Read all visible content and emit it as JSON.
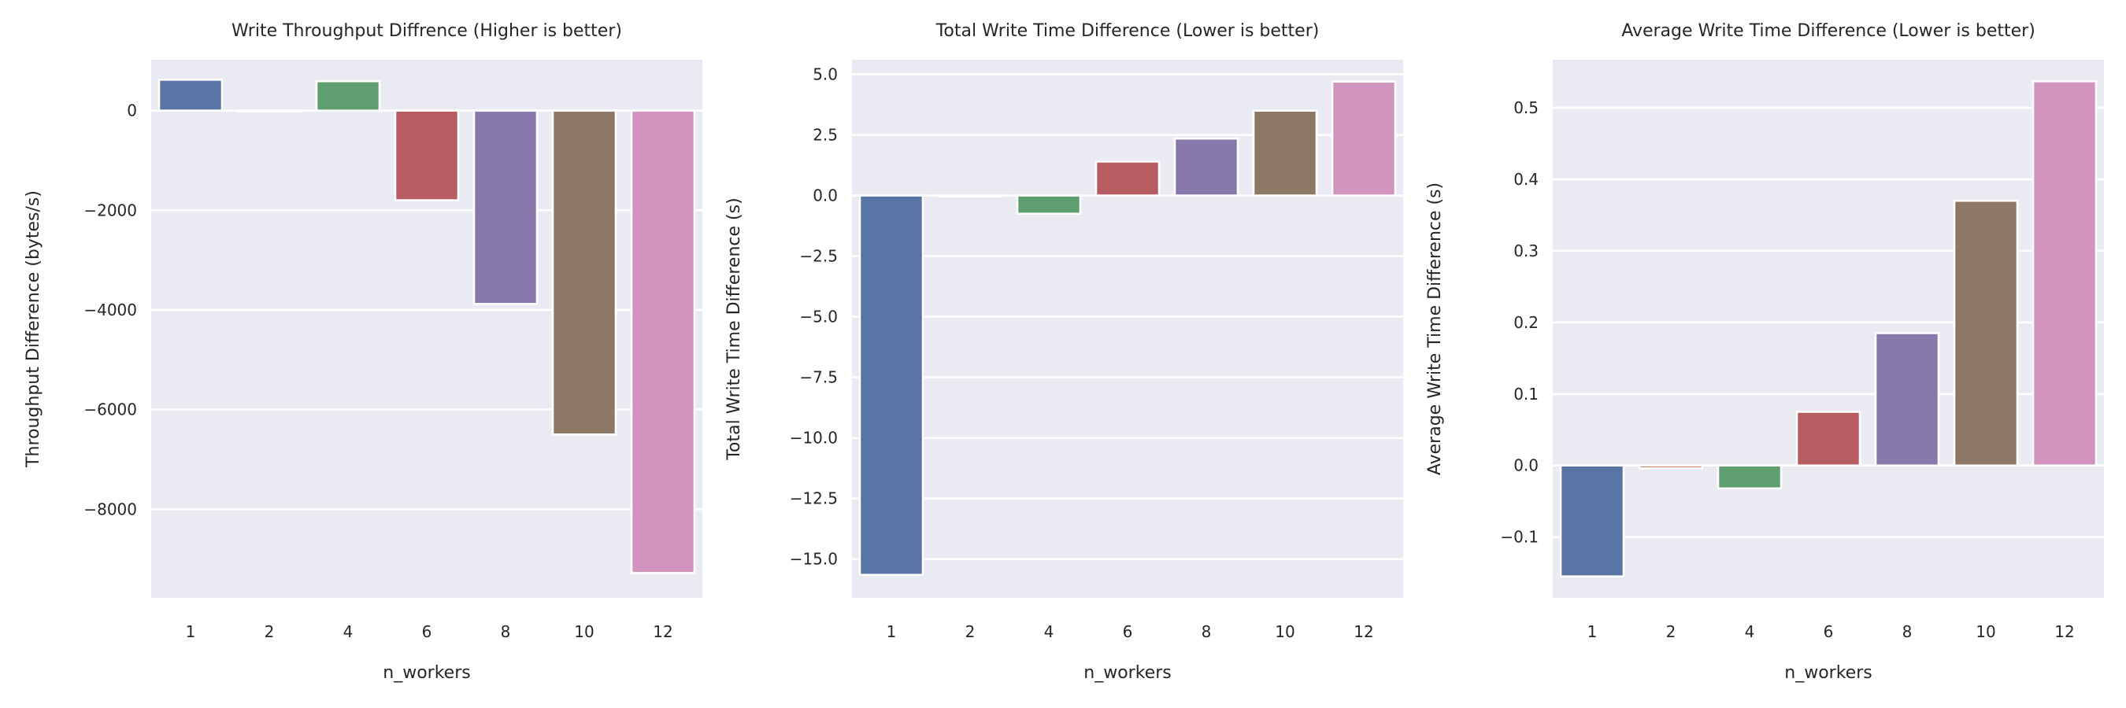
{
  "chart_data": [
    {
      "type": "bar",
      "title": "Write Throughput Diffrence (Higher is better)",
      "xlabel": "n_workers",
      "ylabel": "Throughput Difference (bytes/s)",
      "categories": [
        "1",
        "2",
        "4",
        "6",
        "8",
        "10",
        "12"
      ],
      "values": [
        620,
        0,
        590,
        -1800,
        -3880,
        -6500,
        -9280
      ],
      "ylim": [
        -9780,
        1020
      ],
      "yticks": [
        0,
        -2000,
        -4000,
        -6000,
        -8000
      ],
      "ytick_labels": [
        "0",
        "−2000",
        "−4000",
        "−6000",
        "−8000"
      ],
      "grid": true
    },
    {
      "type": "bar",
      "title": "Total Write Time Difference (Lower is better)",
      "xlabel": "n_workers",
      "ylabel": "Total Write Time Difference (s)",
      "categories": [
        "1",
        "2",
        "4",
        "6",
        "8",
        "10",
        "12"
      ],
      "values": [
        -15.65,
        0.0,
        -0.75,
        1.4,
        2.35,
        3.5,
        4.7
      ],
      "ylim": [
        -16.6,
        5.6
      ],
      "yticks": [
        5.0,
        2.5,
        0.0,
        -2.5,
        -5.0,
        -7.5,
        -10.0,
        -12.5,
        -15.0
      ],
      "ytick_labels": [
        "5.0",
        "2.5",
        "0.0",
        "−2.5",
        "−5.0",
        "−7.5",
        "−10.0",
        "−12.5",
        "−15.0"
      ],
      "grid": true
    },
    {
      "type": "bar",
      "title": "Average Write Time Difference (Lower is better)",
      "xlabel": "n_workers",
      "ylabel": "Average Write Time Difference (s)",
      "categories": [
        "1",
        "2",
        "4",
        "6",
        "8",
        "10",
        "12"
      ],
      "values": [
        -0.155,
        -0.004,
        -0.032,
        0.075,
        0.185,
        0.37,
        0.537
      ],
      "ylim": [
        -0.185,
        0.567
      ],
      "yticks": [
        0.5,
        0.4,
        0.3,
        0.2,
        0.1,
        0.0,
        -0.1
      ],
      "ytick_labels": [
        "0.5",
        "0.4",
        "0.3",
        "0.2",
        "0.1",
        "0.0",
        "−0.1"
      ],
      "grid": true
    }
  ],
  "colors": {
    "background": "#eaeaf2",
    "grid": "#ffffff",
    "bars": [
      "#5874a5",
      "#dd8452",
      "#5f9e6e",
      "#b75d61",
      "#8879ac",
      "#8d7866",
      "#d094bf"
    ]
  }
}
